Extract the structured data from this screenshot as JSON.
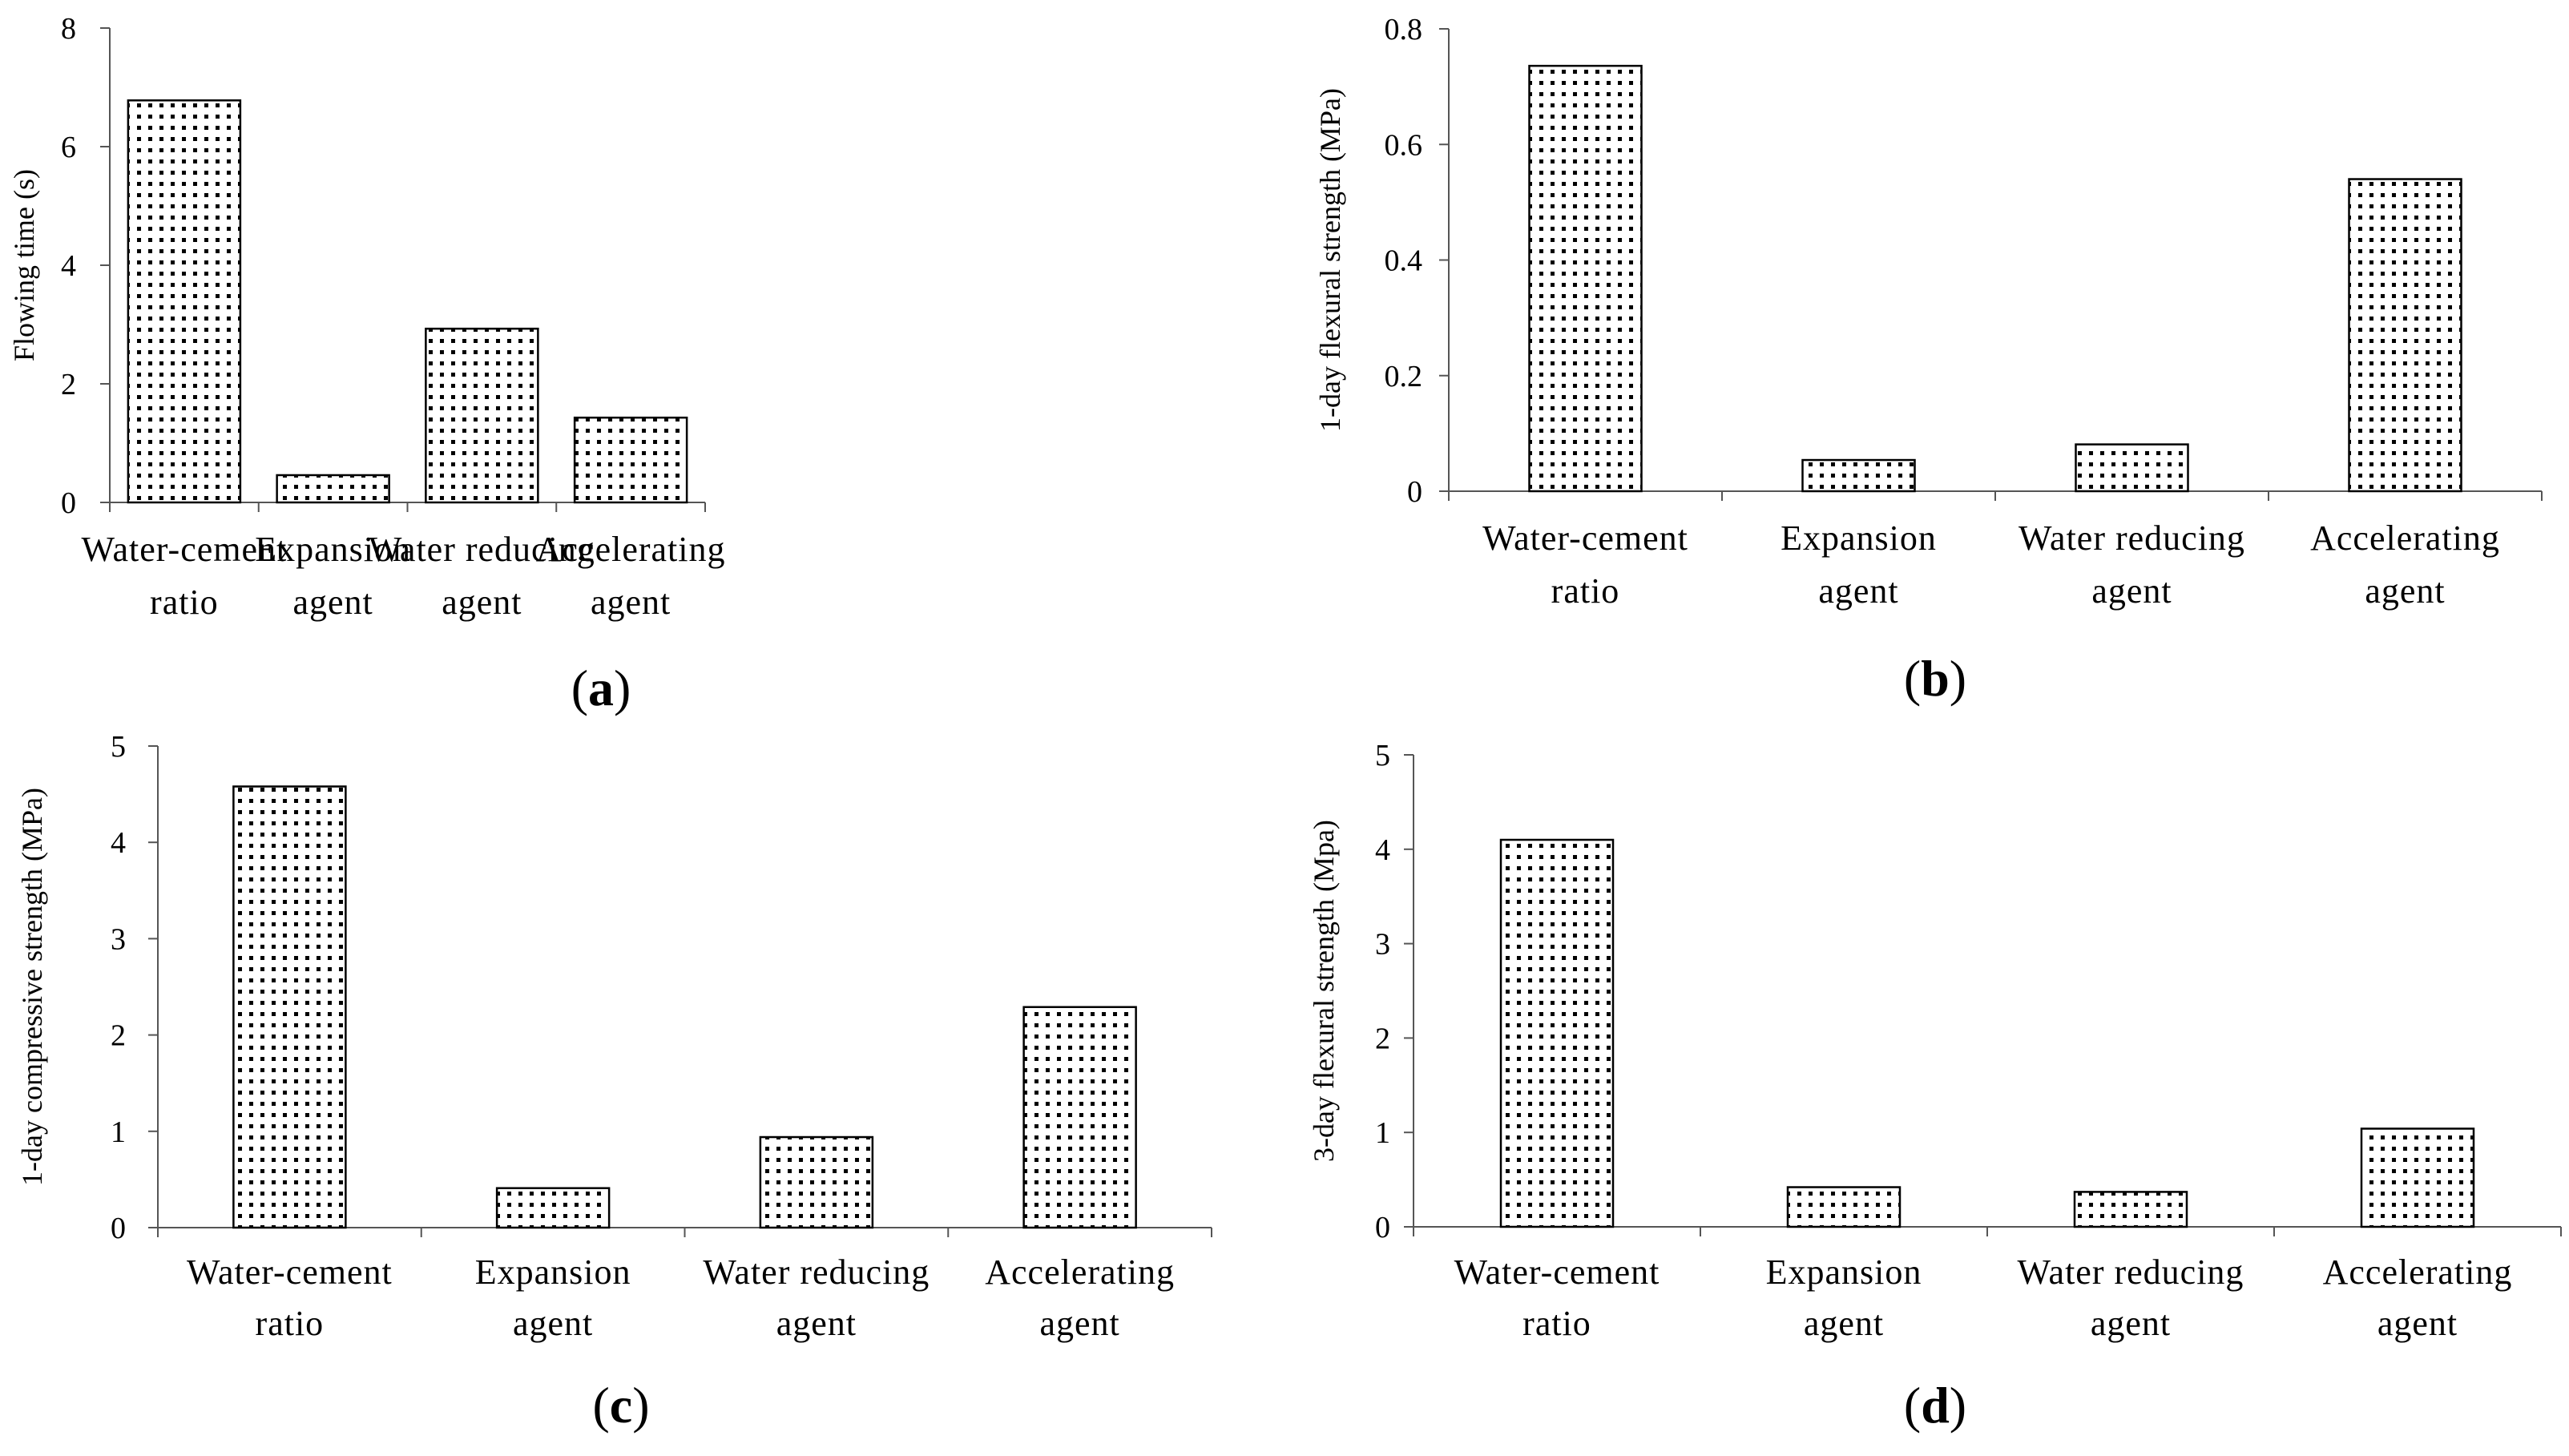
{
  "chart_data": [
    {
      "type": "bar",
      "panel": "a",
      "categories": [
        [
          "Water-cement",
          "ratio"
        ],
        [
          "Expansion",
          "agent"
        ],
        [
          "Water reducing",
          "agent"
        ],
        [
          "Accelerating",
          "agent"
        ]
      ],
      "values": [
        6.78,
        0.46,
        2.93,
        1.43
      ],
      "ylabel": "Flowing time (s)",
      "ylim": [
        0,
        8
      ],
      "yticks": [
        0,
        2,
        4,
        6,
        8
      ],
      "grid": false
    },
    {
      "type": "bar",
      "panel": "b",
      "categories": [
        [
          "Water-cement",
          "ratio"
        ],
        [
          "Expansion",
          "agent"
        ],
        [
          "Water reducing",
          "agent"
        ],
        [
          "Accelerating",
          "agent"
        ]
      ],
      "values": [
        0.736,
        0.054,
        0.081,
        0.54
      ],
      "ylabel": "1-day  flexural strength (MPa)",
      "ylim": [
        0,
        0.8
      ],
      "yticks": [
        0,
        0.2,
        0.4,
        0.6,
        0.8
      ],
      "grid": false
    },
    {
      "type": "bar",
      "panel": "c",
      "categories": [
        [
          "Water-cement",
          "ratio"
        ],
        [
          "Expansion",
          "agent"
        ],
        [
          "Water reducing",
          "agent"
        ],
        [
          "Accelerating",
          "agent"
        ]
      ],
      "values": [
        4.58,
        0.41,
        0.94,
        2.29
      ],
      "ylabel": "1-day compressive strength (MPa)",
      "ylim": [
        0,
        5
      ],
      "yticks": [
        0,
        1,
        2,
        3,
        4,
        5
      ],
      "grid": false
    },
    {
      "type": "bar",
      "panel": "d",
      "categories": [
        [
          "Water-cement",
          "ratio"
        ],
        [
          "Expansion",
          "agent"
        ],
        [
          "Water reducing",
          "agent"
        ],
        [
          "Accelerating",
          "agent"
        ]
      ],
      "values": [
        4.1,
        0.42,
        0.37,
        1.04
      ],
      "ylabel": "3-day flexural strength (Mpa)",
      "ylim": [
        0,
        5
      ],
      "yticks": [
        0,
        1,
        2,
        3,
        4,
        5
      ],
      "grid": false
    }
  ]
}
